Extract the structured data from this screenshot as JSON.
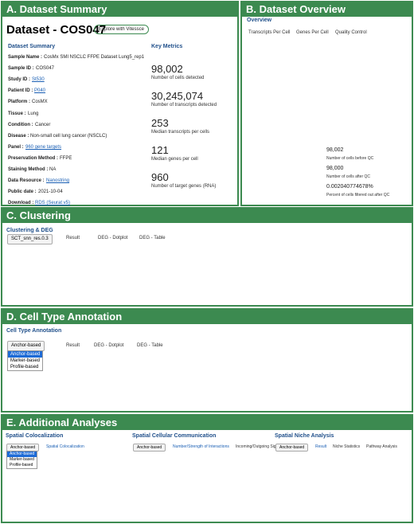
{
  "panel_a": {
    "header": "A. Dataset Summary",
    "title": "Dataset - COS047",
    "button": "Explore with Vitessce",
    "summary_title": "Dataset Summary",
    "metrics_title": "Key Metrics",
    "fields": [
      {
        "label": "Sample Name :",
        "value": "CosMx SMI NSCLC FFPE Dataset Lung5_rep1",
        "link": false
      },
      {
        "label": "Sample ID :",
        "value": "COS047",
        "link": false
      },
      {
        "label": "Study ID :",
        "value": "St530",
        "link": true
      },
      {
        "label": "Patient ID :",
        "value": "P040",
        "link": true
      },
      {
        "label": "Platform :",
        "value": "CosMX",
        "link": false
      },
      {
        "label": "Tissue :",
        "value": "Lung",
        "link": false
      },
      {
        "label": "Condition :",
        "value": "Cancer",
        "link": false
      },
      {
        "label": "Disease :",
        "value": "Non-small cell lung cancer (NSCLC)",
        "link": false
      },
      {
        "label": "Panel :",
        "value": "960 gene targets",
        "link": true
      },
      {
        "label": "Preservation Method :",
        "value": "FFPE",
        "link": false
      },
      {
        "label": "Staining Method :",
        "value": "NA",
        "link": false
      },
      {
        "label": "Data Resource :",
        "value": "Nanostring",
        "link": true
      },
      {
        "label": "Public date :",
        "value": "2021-10-04",
        "link": false
      },
      {
        "label": "Download :",
        "value": "RDS (Seurat v5)",
        "link": true
      }
    ],
    "metrics": [
      {
        "value": "98,002",
        "label": "Number of cells detected"
      },
      {
        "value": "30,245,074",
        "label": "Number of transcripts detected"
      },
      {
        "value": "253",
        "label": "Median transcripts per cells"
      },
      {
        "value": "121",
        "label": "Median genes per cell"
      },
      {
        "value": "960",
        "label": "Number of target genes (RNA)"
      }
    ]
  },
  "panel_b": {
    "header": "B. Dataset Overview",
    "title": "Overview",
    "tabs": [
      "Transcripts Per Cell",
      "Genes Per Cell",
      "Quality Control"
    ],
    "metrics": [
      {
        "value": "98,002",
        "label": "Number of cells before QC"
      },
      {
        "value": "98,000",
        "label": "Number of cells after QC"
      },
      {
        "value": "0.002040774678%",
        "label": "Percent of cells filtered out after QC"
      }
    ]
  },
  "panel_c": {
    "header": "C. Clustering",
    "title": "Clustering & DEG",
    "dropdown": "SCT_snn_res.0.3",
    "tabs": [
      "Result",
      "DEG - Dotplot",
      "DEG - Table"
    ]
  },
  "panel_d": {
    "header": "D. Cell Type Annotation",
    "title": "Cell Type Annotation",
    "dropdown": "Anchor-based",
    "options": [
      "Anchor-based",
      "Marker-based",
      "Profile-based"
    ],
    "tabs": [
      "Result",
      "DEG - Dotplot",
      "DEG - Table"
    ]
  },
  "panel_e": {
    "header": "E. Additional Analyses",
    "subpanels": [
      {
        "title": "Spatial Colocalization",
        "dropdown": "Anchor-based",
        "tabs": [
          "Spatial Colocalization"
        ],
        "options": [
          "Anchor-based",
          "Marker-based",
          "Profile-based"
        ]
      },
      {
        "title": "Spatial Cellular Communication",
        "dropdown": "Anchor-based",
        "tabs": [
          "Number/Strength of Interactions",
          "Incoming/Outgoing Signaling"
        ]
      },
      {
        "title": "Spatial Niche Analysis",
        "dropdown": "Anchor-based",
        "tabs": [
          "Result",
          "Niche Statistics",
          "Pathway Analysis"
        ]
      }
    ]
  }
}
